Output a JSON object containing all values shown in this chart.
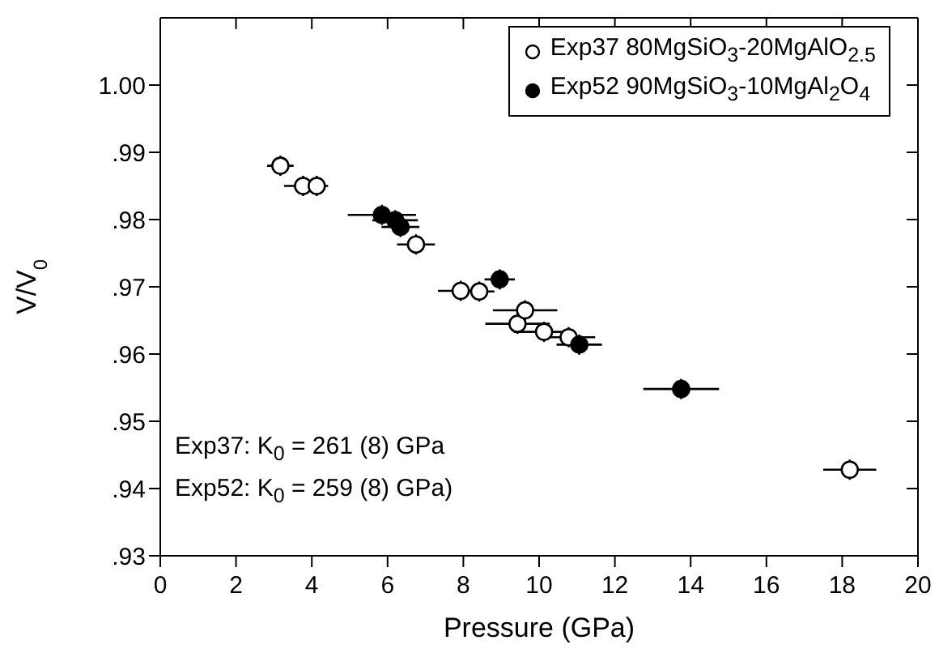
{
  "chart_data": {
    "type": "scatter",
    "xlabel": "Pressure (GPa)",
    "ylabel": "V/V$_{0}$",
    "xlim": [
      0,
      20
    ],
    "xticks": [
      0,
      2,
      4,
      6,
      8,
      10,
      12,
      14,
      16,
      18,
      20
    ],
    "ylim": [
      0.93,
      1.01
    ],
    "yticks": [
      {
        "value": 0.93,
        "label": ".93"
      },
      {
        "value": 0.94,
        "label": ".94"
      },
      {
        "value": 0.95,
        "label": ".95"
      },
      {
        "value": 0.96,
        "label": ".96"
      },
      {
        "value": 0.97,
        "label": ".97"
      },
      {
        "value": 0.98,
        "label": ".98"
      },
      {
        "value": 0.99,
        "label": ".99"
      },
      {
        "value": 1.0,
        "label": "1.00"
      }
    ],
    "marker": "circle",
    "legend": "top right",
    "annotations": [
      "Exp37: K$_{0}$ = 261 (8) GPa",
      "Exp52: K$_{0}$ = 259 (8) GPa)"
    ],
    "series": [
      {
        "name": "Exp37 80MgSiO$_{3}$-20MgAlO$_{2.5}$",
        "color": "#ffffff",
        "x": [
          3.17,
          3.77,
          4.13,
          6.75,
          7.93,
          8.42,
          9.43,
          9.63,
          10.13,
          10.78,
          18.2
        ],
        "values": [
          0.988,
          0.985,
          0.985,
          0.9763,
          0.9694,
          0.9693,
          0.9645,
          0.9665,
          0.9633,
          0.9625,
          0.9428
        ],
        "xerrors": [
          0.35,
          0.5,
          0.3,
          0.5,
          0.6,
          0.4,
          0.85,
          0.85,
          0.8,
          0.7,
          0.7
        ],
        "errors": [
          0.0015,
          0.0015,
          0.0015,
          0.0015,
          0.0015,
          0.0015,
          0.0015,
          0.0015,
          0.0015,
          0.0015,
          0.0015
        ]
      },
      {
        "name": "Exp52 90MgSiO$_{3}$-10MgAl$_{2}$O$_{4}$",
        "color": "#000000",
        "x": [
          5.85,
          6.2,
          6.34,
          8.96,
          11.06,
          13.75
        ],
        "values": [
          0.9807,
          0.9799,
          0.9789,
          0.9711,
          0.9614,
          0.9548
        ],
        "xerrors": [
          0.9,
          0.6,
          0.5,
          0.4,
          0.6,
          1.0
        ],
        "errors": [
          0.0015,
          0.0015,
          0.0015,
          0.0015,
          0.0015,
          0.0015
        ]
      }
    ]
  }
}
